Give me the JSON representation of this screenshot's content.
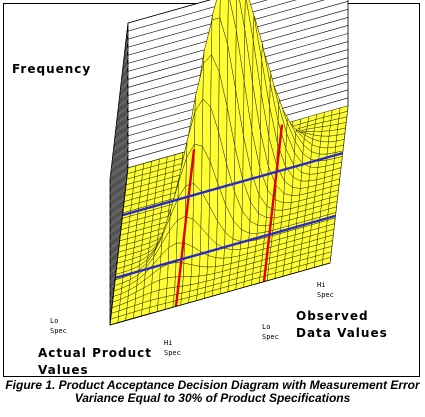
{
  "chart_data": {
    "type": "surface",
    "title": "",
    "zlabel": "Frequency",
    "xlabel": "Observed Data Values",
    "ylabel": "Actual Product Values",
    "x_spec_labels": {
      "lo": "Lo Spec",
      "hi": "Hi Spec"
    },
    "y_spec_labels": {
      "lo": "Lo Spec",
      "hi": "Hi Spec"
    },
    "surface": {
      "shape": "bivariate normal, correlated (ridge along diagonal)",
      "peak_relative_height": 1.0,
      "grid_size": 28
    },
    "spec_line_colors": {
      "observed_values": "#e00000",
      "actual_values": "#2a2acc"
    },
    "surface_color": "#ffff33",
    "mesh_color": "#222200"
  },
  "caption": {
    "line1": "Figure 1. Product Acceptance Decision Diagram with Measurement Error",
    "line2": "Variance Equal to 30% of Product Specifications"
  }
}
